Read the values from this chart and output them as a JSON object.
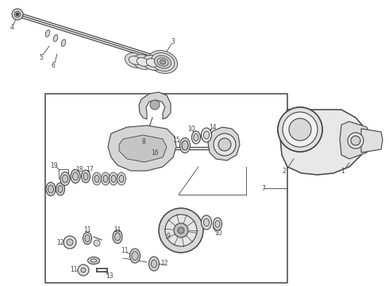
{
  "bg_color": "#ffffff",
  "dc": "#444444",
  "lc": "#666666",
  "gc": "#bbbbbb",
  "fc_light": "#e8e8e8",
  "fc_mid": "#d0d0d0",
  "fc_dark": "#b0b0b0"
}
